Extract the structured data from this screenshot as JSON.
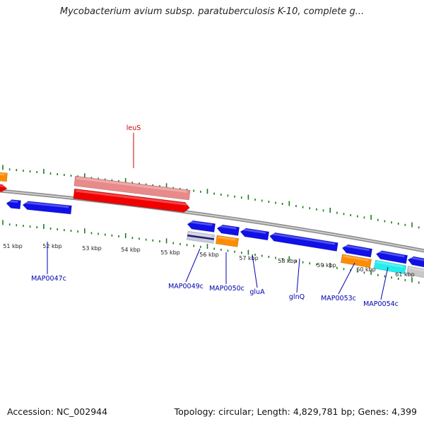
{
  "title": "Mycobacterium avium subsp. paratuberculosis K-10, complete g...",
  "footer": {
    "accession": "Accession: NC_002944",
    "summary": "Topology: circular; Length: 4,829,781 bp; Genes: 4,399"
  },
  "colors": {
    "cds_blue": "#1010e8",
    "cds_red": "#f00000",
    "cds_pink": "#e88a8a",
    "cds_orange": "#ff8c00",
    "cds_cyan": "#22eeee",
    "cds_gray": "#c8c8c8",
    "cds_navy": "#1a1a60",
    "backbone": "#888888",
    "tick_green": "#1a7a1a",
    "label_blue": "#0000b0",
    "label_red": "#d00000"
  },
  "scale": {
    "unit": "kbp",
    "labels": [
      "51 kbp",
      "52 kbp",
      "53 kbp",
      "54 kbp",
      "55 kbp",
      "56 kbp",
      "57 kbp",
      "58 kbp",
      "59 kbp",
      "60 kbp",
      "61 kbp"
    ]
  },
  "gene_labels": [
    {
      "name": "leuS",
      "color": "red"
    },
    {
      "name": "MAP0047c",
      "color": "blue"
    },
    {
      "name": "MAP0049c",
      "color": "blue"
    },
    {
      "name": "MAP0050c",
      "color": "blue"
    },
    {
      "name": "gluA",
      "color": "blue"
    },
    {
      "name": "glnQ",
      "color": "blue"
    },
    {
      "name": "MAP0053c",
      "color": "blue"
    },
    {
      "name": "MAP0054c",
      "color": "blue"
    }
  ]
}
